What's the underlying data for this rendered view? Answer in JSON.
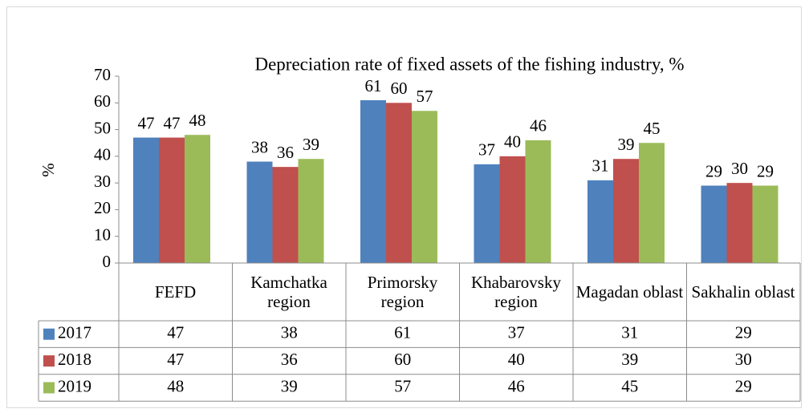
{
  "chart_data": {
    "type": "bar",
    "title": "Depreciation rate of fixed assets of the fishing industry, %",
    "y_label": "%",
    "categories": [
      "FEFD",
      "Kamchatka region",
      "Primorsky region",
      "Khabarovsky region",
      "Magadan oblast",
      "Sakhalin oblast"
    ],
    "series": [
      {
        "name": "2017",
        "color": "#4f81bd",
        "values": [
          47,
          38,
          61,
          37,
          31,
          29
        ]
      },
      {
        "name": "2018",
        "color": "#c0504d",
        "values": [
          47,
          36,
          60,
          40,
          39,
          30
        ]
      },
      {
        "name": "2019",
        "color": "#9bbb59",
        "values": [
          48,
          39,
          57,
          46,
          45,
          29
        ]
      }
    ],
    "ylim": [
      0,
      70
    ],
    "yticks": [
      0,
      10,
      20,
      30,
      40,
      50,
      60,
      70
    ],
    "grid": false,
    "legend": "table"
  }
}
